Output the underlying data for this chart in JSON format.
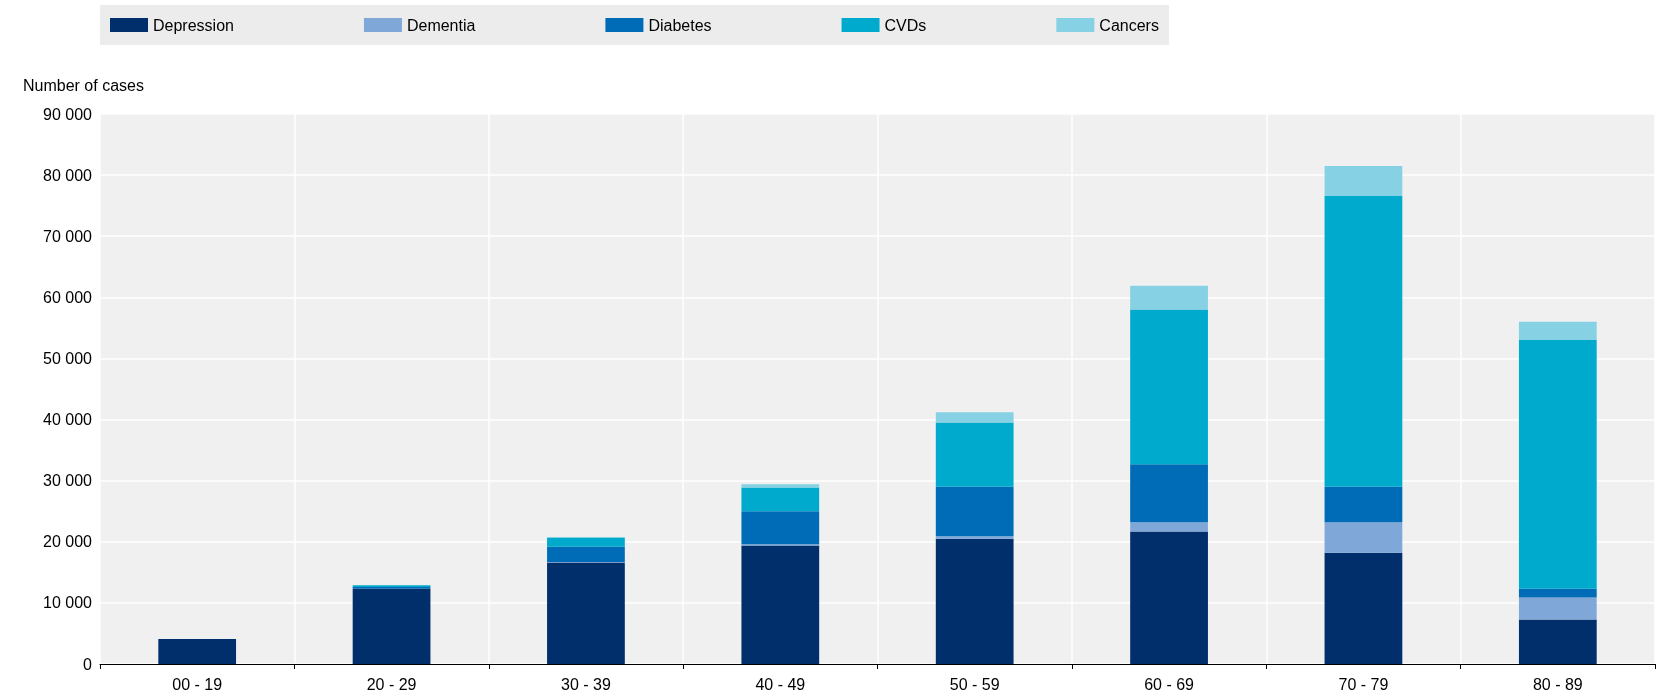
{
  "chart_data": {
    "type": "bar",
    "stacked": true,
    "ylabel": "Number of cases",
    "categories": [
      "00 - 19",
      "20 - 29",
      "30 - 39",
      "40 - 49",
      "50 - 59",
      "60 - 69",
      "70 - 79",
      "80 - 89"
    ],
    "series": [
      {
        "name": "Depression",
        "color": "#002f6c",
        "values": [
          4100,
          12300,
          16600,
          19400,
          20500,
          21700,
          18200,
          7300
        ]
      },
      {
        "name": "Dementia",
        "color": "#7fa8d9",
        "values": [
          0,
          0,
          100,
          200,
          400,
          1500,
          5000,
          3600
        ]
      },
      {
        "name": "Diabetes",
        "color": "#006bb6",
        "values": [
          0,
          300,
          2500,
          5400,
          8100,
          9500,
          5800,
          1400
        ]
      },
      {
        "name": "CVDs",
        "color": "#00aacc",
        "values": [
          0,
          300,
          1400,
          3900,
          10500,
          25300,
          47600,
          40700
        ]
      },
      {
        "name": "Cancers",
        "color": "#86d1e3",
        "values": [
          0,
          0,
          200,
          500,
          1700,
          3900,
          4900,
          3000
        ]
      }
    ],
    "ylim": [
      0,
      90000
    ],
    "yticks": [
      0,
      {
        "value": 10000,
        "label": "10 000"
      },
      {
        "value": 20000,
        "label": "20 000"
      },
      {
        "value": 30000,
        "label": "30 000"
      },
      {
        "value": 40000,
        "label": "40 000"
      },
      {
        "value": 50000,
        "label": "50 000"
      },
      {
        "value": 60000,
        "label": "60 000"
      },
      {
        "value": 70000,
        "label": "70 000"
      },
      {
        "value": 80000,
        "label": "80 000"
      },
      {
        "value": 90000,
        "label": "90 000"
      }
    ],
    "grid": true,
    "legend": "top"
  }
}
